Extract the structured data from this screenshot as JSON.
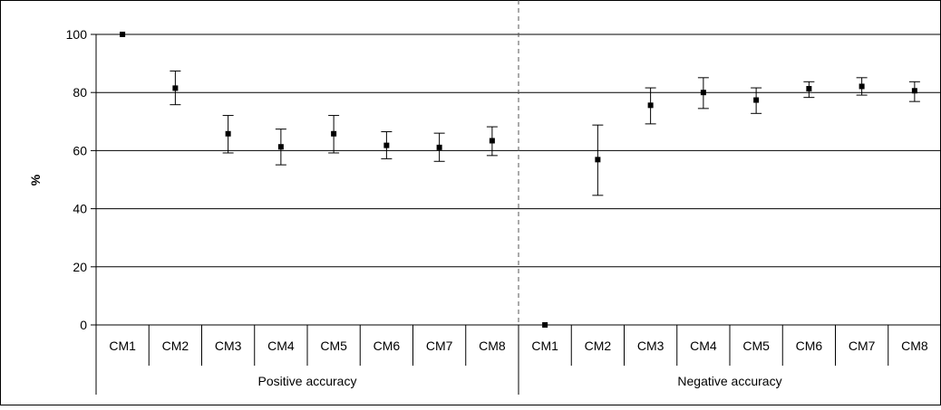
{
  "chart_data": {
    "type": "scatter",
    "title": "",
    "ylabel": "%",
    "xlabel": "",
    "ylim": [
      0,
      100
    ],
    "yticks": [
      0,
      20,
      40,
      60,
      80,
      100
    ],
    "grid": true,
    "legend": "none",
    "categories": [
      "CM1",
      "CM2",
      "CM3",
      "CM4",
      "CM5",
      "CM6",
      "CM7",
      "CM8",
      "CM1",
      "CM2",
      "CM3",
      "CM4",
      "CM5",
      "CM6",
      "CM7",
      "CM8"
    ],
    "groups": [
      {
        "label": "Positive accuracy",
        "categories": [
          "CM1",
          "CM2",
          "CM3",
          "CM4",
          "CM5",
          "CM6",
          "CM7",
          "CM8"
        ]
      },
      {
        "label": "Negative accuracy",
        "categories": [
          "CM1",
          "CM2",
          "CM3",
          "CM4",
          "CM5",
          "CM6",
          "CM7",
          "CM8"
        ]
      }
    ],
    "series": [
      {
        "values": [
          100,
          81.5,
          65.8,
          61.3,
          65.8,
          61.8,
          61.1,
          63.4,
          0,
          56.9,
          75.6,
          80.0,
          77.4,
          81.3,
          82.1,
          80.6
        ],
        "error_low": [
          100,
          75.8,
          59.2,
          55.1,
          59.2,
          57.2,
          56.3,
          58.3,
          0,
          44.6,
          69.2,
          74.5,
          72.8,
          78.3,
          79.1,
          76.9
        ],
        "error_high": [
          100,
          87.4,
          72.1,
          67.4,
          72.1,
          66.5,
          66.0,
          68.2,
          0,
          68.8,
          81.6,
          85.1,
          81.6,
          83.7,
          85.1,
          83.7
        ]
      }
    ],
    "divider_after_index": 7,
    "colors": {
      "marker": "#000000",
      "grid": "#000000",
      "divider": "#555555",
      "frame": "#000000"
    }
  }
}
